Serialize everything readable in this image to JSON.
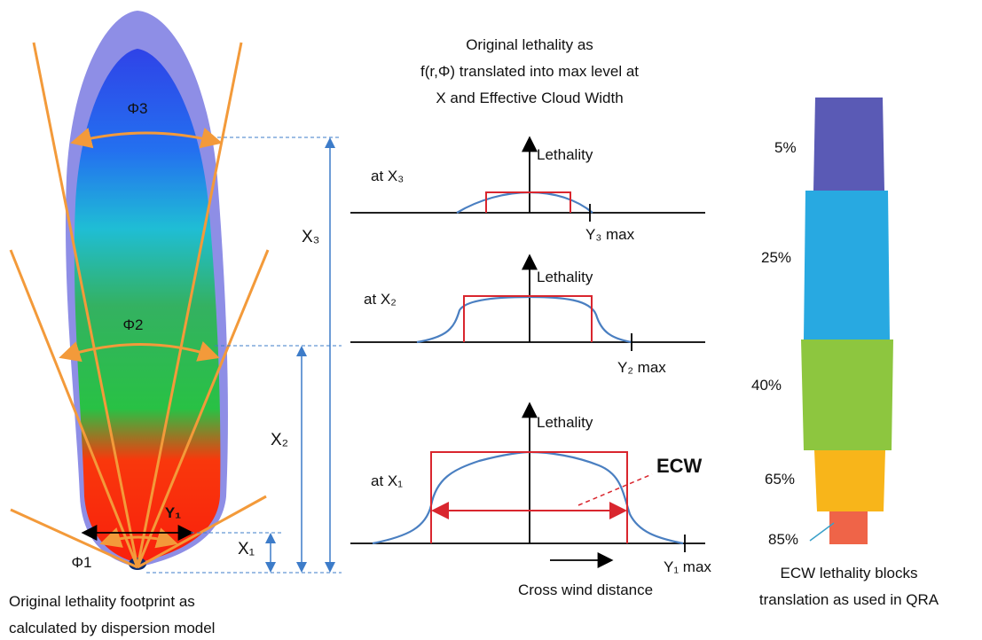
{
  "title": {
    "lines": [
      "Original lethality as",
      "f(r,Φ) translated into max level at",
      "X and Effective Cloud Width"
    ]
  },
  "footprint": {
    "phi_labels": [
      "Φ3",
      "Φ2",
      "Φ1"
    ],
    "y_label": "Y₁",
    "x_labels": [
      "X₃",
      "X₂",
      "X₁"
    ],
    "caption": [
      "Original lethality footprint as",
      "calculated by dispersion model"
    ]
  },
  "panels": [
    {
      "axis_label": "Lethality",
      "position": "at X₃",
      "max_label": "Y₃ max"
    },
    {
      "axis_label": "Lethality",
      "position": "at X₂",
      "max_label": "Y₂ max"
    },
    {
      "axis_label": "Lethality",
      "position": "at X₁",
      "max_label": "Y₁ max"
    }
  ],
  "ecw_label": "ECW",
  "x_axis_label": "Cross wind distance",
  "blocks": {
    "labels": [
      "5%",
      "25%",
      "40%",
      "65%",
      "85%"
    ],
    "caption": [
      "ECW lethality blocks",
      "translation as used in QRA"
    ]
  }
}
